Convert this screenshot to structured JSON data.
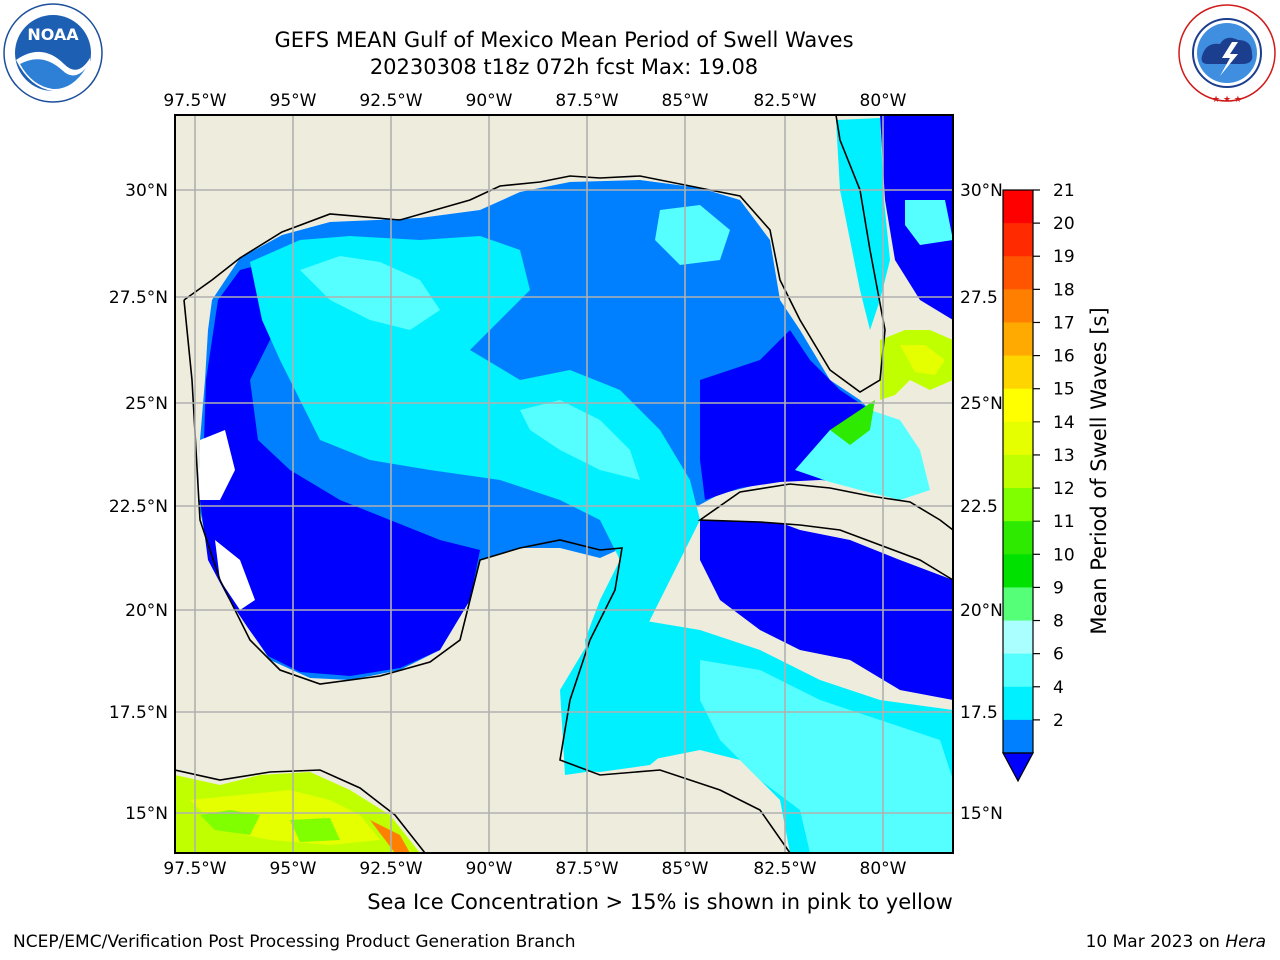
{
  "title": {
    "line1": "GEFS MEAN Gulf of Mexico Mean Period of Swell Waves",
    "line2": "20230308 t18z 072h fcst   Max: 19.08"
  },
  "logos": {
    "left": {
      "icon": "noaa-logo",
      "text": "NOAA",
      "ring_text": "NATIONAL OCEANIC AND ATMOSPHERIC ADMINISTRATION · U.S. DEPARTMENT OF COMMERCE"
    },
    "right": {
      "icon": "nws-logo",
      "ring_text": "NATIONAL WEATHER SERVICE"
    }
  },
  "map": {
    "lon_ticks": [
      "97.5°W",
      "95°W",
      "92.5°W",
      "90°W",
      "87.5°W",
      "85°W",
      "82.5°W",
      "80°W"
    ],
    "lat_ticks_left": [
      "30°N",
      "27.5°N",
      "25°N",
      "22.5°N",
      "20°N",
      "17.5°N",
      "15°N"
    ],
    "lat_ticks_right": [
      "30°N",
      "27.5",
      "25°N",
      "22.5",
      "20°N",
      "17.5",
      "15°N"
    ],
    "land_color": "#eeecdc",
    "grid_color": "#b0b0b0"
  },
  "colorbar": {
    "label": "Mean Period of Swell Waves [s]",
    "ticks": [
      "21",
      "20",
      "19",
      "18",
      "17",
      "16",
      "15",
      "14",
      "13",
      "12",
      "11",
      "10",
      "9",
      "8",
      "6",
      "4",
      "2"
    ],
    "colors_top_to_bottom": [
      "#ff0000",
      "#ff2a00",
      "#ff5500",
      "#ff8000",
      "#ffaa00",
      "#ffd500",
      "#ffff00",
      "#e5ff00",
      "#c0ff00",
      "#7fff00",
      "#2eea00",
      "#00e100",
      "#55ff77",
      "#aaffff",
      "#55ffff",
      "#00f0ff",
      "#0080ff"
    ],
    "under_color": "#0000ff"
  },
  "note": "Sea Ice Concentration > 15% is shown in pink to yellow",
  "footer": {
    "left": "NCEP/EMC/Verification Post Processing Product Generation Branch",
    "right_date": "10 Mar 2023 on",
    "right_host": "Hera"
  }
}
